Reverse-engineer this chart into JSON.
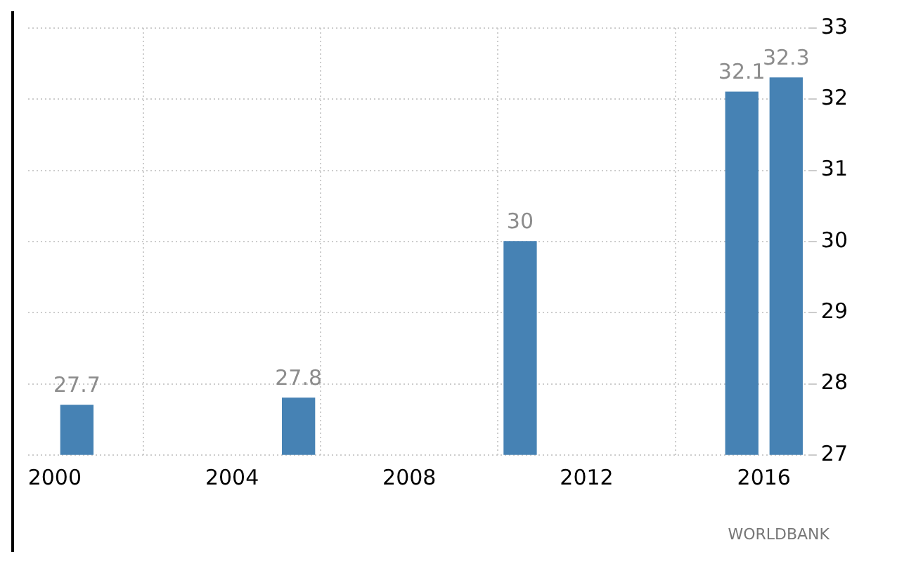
{
  "chart_data": {
    "type": "bar",
    "x": [
      2000.5,
      2005.5,
      2010.5,
      2015.5,
      2016.5
    ],
    "values": [
      27.7,
      27.8,
      30,
      32.1,
      32.3
    ],
    "color": "#4682b4",
    "data_labels": true,
    "xlim": [
      1999.4,
      2017
    ],
    "xticks": [
      2000,
      2004,
      2008,
      2012,
      2016
    ],
    "ylim": [
      27,
      33
    ],
    "yticks": [
      27,
      28,
      29,
      30,
      31,
      32,
      33
    ],
    "grid": true,
    "annotations": [
      "WORLDBANK"
    ]
  }
}
